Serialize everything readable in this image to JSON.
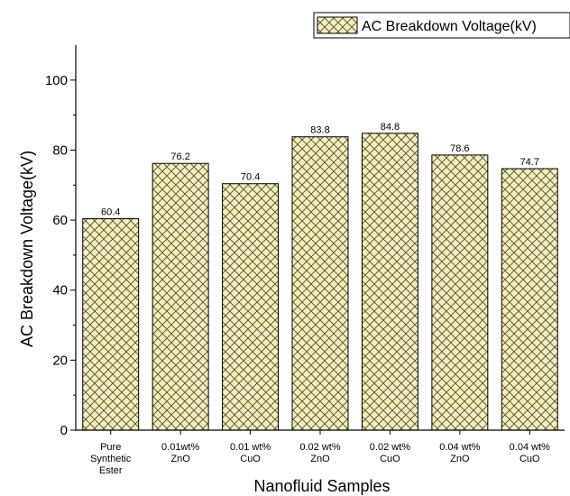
{
  "chart_data": {
    "type": "bar",
    "categories": [
      [
        "Pure",
        "Synthetic",
        "Ester"
      ],
      [
        "0.01wt%",
        "ZnO"
      ],
      [
        "0.01 wt%",
        "CuO"
      ],
      [
        "0.02 wt%",
        "ZnO"
      ],
      [
        "0.02 wt%",
        "CuO"
      ],
      [
        "0.04 wt%",
        "ZnO"
      ],
      [
        "0.04 wt%",
        "CuO"
      ]
    ],
    "series": [
      {
        "name": "AC Breakdown Voltage(kV)",
        "values": [
          60.4,
          76.2,
          70.4,
          83.8,
          84.8,
          78.6,
          74.7
        ],
        "labels": [
          "60.4",
          "76.2",
          "70.4",
          "83.8",
          "84.8",
          "78.6",
          "74.7"
        ],
        "fill_color": "#f5efb4",
        "hatch_color": "#444444",
        "hatch": "crosshatch"
      }
    ],
    "xlabel": "Nanofluid Samples",
    "ylabel": "AC Breakdown Voltage(kV)",
    "ylim": [
      0,
      110
    ],
    "yticks": [
      0,
      20,
      40,
      60,
      80,
      100
    ],
    "grid": false,
    "legend_position": "top-right"
  }
}
